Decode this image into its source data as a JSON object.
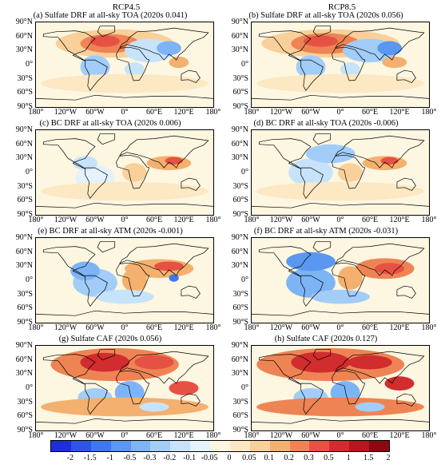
{
  "column_titles": [
    "RCP4.5",
    "RCP8.5"
  ],
  "panels": [
    {
      "title": "(a) Sulfate DRF at all-sky TOA (2020s 0.041)",
      "scenario": "RCP4.5"
    },
    {
      "title": "(b) Sulfate DRF at all-sky TOA (2020s 0.056)",
      "scenario": "RCP8.5"
    },
    {
      "title": "(c) BC DRF at all-sky TOA (2020s 0.006)",
      "scenario": "RCP4.5"
    },
    {
      "title": "(d) BC DRF at all-sky TOA (2020s -0.006)",
      "scenario": "RCP8.5"
    },
    {
      "title": "(e) BC DRF at all-sky ATM (2020s -0.001)",
      "scenario": "RCP4.5"
    },
    {
      "title": "(f) BC DRF at all-sky ATM (2020s -0.031)",
      "scenario": "RCP8.5"
    },
    {
      "title": "(g) Sulfate CAF (2020s 0.056)",
      "scenario": "RCP4.5"
    },
    {
      "title": "(h) Sulfate CAF (2020s 0.127)",
      "scenario": "RCP8.5"
    }
  ],
  "lat_labels": [
    "90°N",
    "60°N",
    "30°N",
    "0°",
    "30°S",
    "60°S",
    "90°S"
  ],
  "lon_labels": [
    "180°",
    "120°W",
    "60°W",
    "0°",
    "60°E",
    "120°E",
    "180°"
  ],
  "colorbar": {
    "ticks": [
      "-2",
      "-1.5",
      "-1",
      "-0.5",
      "-0.3",
      "-0.2",
      "-0.1",
      "-0.05",
      "0",
      "0.05",
      "0.1",
      "0.2",
      "0.3",
      "0.5",
      "1",
      "1.5",
      "2"
    ],
    "colors": [
      "#1e2fd6",
      "#2f55e3",
      "#3f78ec",
      "#5a97f0",
      "#7db4f5",
      "#a2cdf8",
      "#c7e3fa",
      "#e4f2fb",
      "#fdf6e1",
      "#fce8c3",
      "#f9d09a",
      "#f4b06e",
      "#ee8454",
      "#e55243",
      "#d12c2e",
      "#b5161f",
      "#8a0a12"
    ]
  }
}
